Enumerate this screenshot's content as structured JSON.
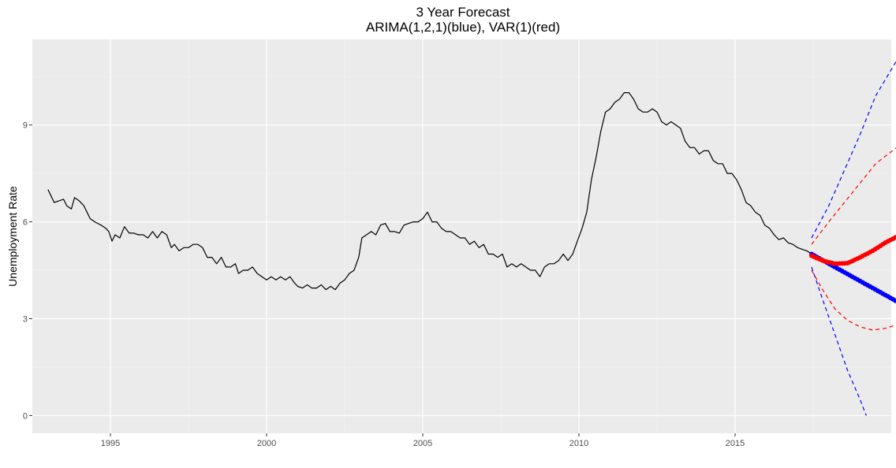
{
  "chart_data": {
    "type": "line",
    "title": "3 Year Forecast",
    "subtitle": "ARIMA(1,2,1)(blue), VAR(1)(red)",
    "xlabel": "",
    "ylabel": "Unemployment Rate",
    "xlim": [
      1992.5,
      2020.0
    ],
    "ylim": [
      -0.55,
      11.65
    ],
    "x_ticks": [
      1995,
      2000,
      2005,
      2010,
      2015
    ],
    "y_ticks": [
      0,
      3,
      6,
      9
    ],
    "grid": true,
    "background": "#ebebeb",
    "series": [
      {
        "color": "#000000",
        "style": "solid-line",
        "points": [
          [
            1993.0,
            7.0
          ],
          [
            1993.1,
            6.8
          ],
          [
            1993.2,
            6.6
          ],
          [
            1993.35,
            6.65
          ],
          [
            1993.5,
            6.7
          ],
          [
            1993.6,
            6.5
          ],
          [
            1993.75,
            6.4
          ],
          [
            1993.85,
            6.75
          ],
          [
            1994.0,
            6.65
          ],
          [
            1994.15,
            6.5
          ],
          [
            1994.25,
            6.3
          ],
          [
            1994.35,
            6.1
          ],
          [
            1994.5,
            6.0
          ],
          [
            1994.7,
            5.9
          ],
          [
            1994.85,
            5.8
          ],
          [
            1994.95,
            5.7
          ],
          [
            1995.05,
            5.4
          ],
          [
            1995.15,
            5.6
          ],
          [
            1995.3,
            5.5
          ],
          [
            1995.45,
            5.85
          ],
          [
            1995.6,
            5.65
          ],
          [
            1995.75,
            5.65
          ],
          [
            1995.9,
            5.6
          ],
          [
            1996.05,
            5.6
          ],
          [
            1996.2,
            5.5
          ],
          [
            1996.35,
            5.7
          ],
          [
            1996.5,
            5.5
          ],
          [
            1996.65,
            5.7
          ],
          [
            1996.8,
            5.6
          ],
          [
            1996.95,
            5.2
          ],
          [
            1997.05,
            5.3
          ],
          [
            1997.2,
            5.1
          ],
          [
            1997.35,
            5.2
          ],
          [
            1997.5,
            5.2
          ],
          [
            1997.65,
            5.3
          ],
          [
            1997.8,
            5.3
          ],
          [
            1997.95,
            5.2
          ],
          [
            1998.1,
            4.9
          ],
          [
            1998.25,
            4.9
          ],
          [
            1998.4,
            4.7
          ],
          [
            1998.55,
            4.9
          ],
          [
            1998.7,
            4.6
          ],
          [
            1998.85,
            4.6
          ],
          [
            1999.0,
            4.7
          ],
          [
            1999.1,
            4.4
          ],
          [
            1999.25,
            4.5
          ],
          [
            1999.4,
            4.5
          ],
          [
            1999.55,
            4.6
          ],
          [
            1999.7,
            4.4
          ],
          [
            1999.85,
            4.3
          ],
          [
            2000.0,
            4.2
          ],
          [
            2000.15,
            4.3
          ],
          [
            2000.3,
            4.2
          ],
          [
            2000.45,
            4.3
          ],
          [
            2000.6,
            4.2
          ],
          [
            2000.75,
            4.3
          ],
          [
            2000.9,
            4.1
          ],
          [
            2001.0,
            4.0
          ],
          [
            2001.15,
            3.95
          ],
          [
            2001.3,
            4.05
          ],
          [
            2001.45,
            3.95
          ],
          [
            2001.6,
            3.95
          ],
          [
            2001.75,
            4.05
          ],
          [
            2001.9,
            3.9
          ],
          [
            2002.05,
            4.0
          ],
          [
            2002.2,
            3.9
          ],
          [
            2002.35,
            4.1
          ],
          [
            2002.5,
            4.2
          ],
          [
            2002.65,
            4.4
          ],
          [
            2002.8,
            4.5
          ],
          [
            2002.95,
            4.9
          ],
          [
            2003.05,
            5.5
          ],
          [
            2003.2,
            5.6
          ],
          [
            2003.35,
            5.7
          ],
          [
            2003.5,
            5.6
          ],
          [
            2003.65,
            5.9
          ],
          [
            2003.8,
            5.95
          ],
          [
            2003.95,
            5.7
          ],
          [
            2004.1,
            5.7
          ],
          [
            2004.25,
            5.65
          ],
          [
            2004.4,
            5.9
          ],
          [
            2004.55,
            5.95
          ],
          [
            2004.7,
            6.0
          ],
          [
            2004.85,
            6.0
          ],
          [
            2005.0,
            6.1
          ],
          [
            2005.15,
            6.3
          ],
          [
            2005.3,
            6.0
          ],
          [
            2005.45,
            6.0
          ],
          [
            2005.6,
            5.8
          ],
          [
            2005.75,
            5.7
          ],
          [
            2005.9,
            5.7
          ],
          [
            2006.05,
            5.6
          ],
          [
            2006.2,
            5.5
          ],
          [
            2006.35,
            5.5
          ],
          [
            2006.5,
            5.3
          ],
          [
            2006.65,
            5.4
          ],
          [
            2006.8,
            5.2
          ],
          [
            2006.95,
            5.3
          ],
          [
            2007.1,
            5.0
          ],
          [
            2007.25,
            5.0
          ],
          [
            2007.4,
            4.9
          ],
          [
            2007.55,
            5.0
          ],
          [
            2007.7,
            4.6
          ],
          [
            2007.85,
            4.7
          ],
          [
            2008.0,
            4.6
          ],
          [
            2008.15,
            4.7
          ],
          [
            2008.3,
            4.6
          ],
          [
            2008.45,
            4.5
          ],
          [
            2008.6,
            4.5
          ],
          [
            2008.75,
            4.3
          ],
          [
            2008.9,
            4.6
          ],
          [
            2009.05,
            4.7
          ],
          [
            2009.2,
            4.7
          ],
          [
            2009.35,
            4.8
          ],
          [
            2009.5,
            5.0
          ],
          [
            2009.65,
            4.8
          ],
          [
            2009.8,
            5.0
          ],
          [
            2009.95,
            5.4
          ],
          [
            2010.1,
            5.8
          ],
          [
            2010.25,
            6.3
          ],
          [
            2010.4,
            7.3
          ],
          [
            2010.55,
            8.0
          ],
          [
            2010.7,
            8.8
          ],
          [
            2010.85,
            9.4
          ],
          [
            2011.0,
            9.5
          ],
          [
            2011.15,
            9.7
          ],
          [
            2011.3,
            9.8
          ],
          [
            2011.45,
            10.0
          ],
          [
            2011.6,
            10.0
          ],
          [
            2011.75,
            9.8
          ],
          [
            2011.9,
            9.5
          ],
          [
            2012.05,
            9.4
          ],
          [
            2012.2,
            9.4
          ],
          [
            2012.35,
            9.5
          ],
          [
            2012.5,
            9.4
          ],
          [
            2012.65,
            9.1
          ],
          [
            2012.8,
            9.0
          ],
          [
            2012.95,
            9.1
          ],
          [
            2013.1,
            9.0
          ],
          [
            2013.25,
            8.9
          ],
          [
            2013.4,
            8.5
          ],
          [
            2013.55,
            8.3
          ],
          [
            2013.7,
            8.3
          ],
          [
            2013.85,
            8.1
          ],
          [
            2014.0,
            8.2
          ],
          [
            2014.15,
            8.2
          ],
          [
            2014.3,
            7.9
          ],
          [
            2014.45,
            7.8
          ],
          [
            2014.6,
            7.8
          ],
          [
            2014.75,
            7.5
          ],
          [
            2014.9,
            7.5
          ],
          [
            2015.05,
            7.3
          ],
          [
            2015.2,
            7.0
          ],
          [
            2015.35,
            6.6
          ],
          [
            2015.5,
            6.5
          ],
          [
            2015.65,
            6.3
          ],
          [
            2015.8,
            6.2
          ],
          [
            2015.95,
            5.9
          ],
          [
            2016.1,
            5.8
          ],
          [
            2016.25,
            5.6
          ],
          [
            2016.4,
            5.45
          ],
          [
            2016.55,
            5.5
          ],
          [
            2016.7,
            5.35
          ],
          [
            2016.85,
            5.3
          ],
          [
            2017.0,
            5.2
          ],
          [
            2017.15,
            5.15
          ],
          [
            2017.3,
            5.1
          ],
          [
            2017.45,
            5.0
          ]
        ]
      },
      {
        "color": "#0000ff",
        "style": "points",
        "x_start": 2017.45,
        "x_end": 2020.3,
        "y_start": 5.0,
        "y_end": 3.47,
        "count": 36,
        "curve": "linear"
      },
      {
        "color": "#ff0000",
        "style": "points",
        "x_start": 2017.45,
        "x_end": 2020.3,
        "points": [
          [
            2017.45,
            4.95
          ],
          [
            2017.8,
            4.8
          ],
          [
            2018.2,
            4.7
          ],
          [
            2018.6,
            4.72
          ],
          [
            2019.0,
            4.9
          ],
          [
            2019.4,
            5.1
          ],
          [
            2019.8,
            5.35
          ],
          [
            2020.3,
            5.6
          ]
        ]
      },
      {
        "color": "#0000ff",
        "style": "dashed-line",
        "points": [
          [
            2017.45,
            5.5
          ],
          [
            2018.0,
            6.5
          ],
          [
            2018.5,
            7.6
          ],
          [
            2019.0,
            8.7
          ],
          [
            2019.5,
            9.9
          ],
          [
            2020.3,
            11.2
          ]
        ]
      },
      {
        "color": "#0000ff",
        "style": "dashed-line",
        "points": [
          [
            2017.45,
            4.6
          ],
          [
            2017.8,
            3.6
          ],
          [
            2018.2,
            2.5
          ],
          [
            2018.6,
            1.4
          ],
          [
            2019.0,
            0.5
          ],
          [
            2019.2,
            0.0
          ]
        ]
      },
      {
        "color": "#ff0000",
        "style": "dashed-line",
        "points": [
          [
            2017.45,
            5.3
          ],
          [
            2018.0,
            6.0
          ],
          [
            2018.5,
            6.6
          ],
          [
            2019.0,
            7.2
          ],
          [
            2019.5,
            7.8
          ],
          [
            2020.3,
            8.4
          ]
        ]
      },
      {
        "color": "#ff0000",
        "style": "dashed-line",
        "points": [
          [
            2017.45,
            4.5
          ],
          [
            2017.8,
            3.9
          ],
          [
            2018.2,
            3.3
          ],
          [
            2018.6,
            2.95
          ],
          [
            2019.0,
            2.75
          ],
          [
            2019.4,
            2.65
          ],
          [
            2019.8,
            2.7
          ],
          [
            2020.3,
            2.85
          ]
        ]
      }
    ]
  }
}
